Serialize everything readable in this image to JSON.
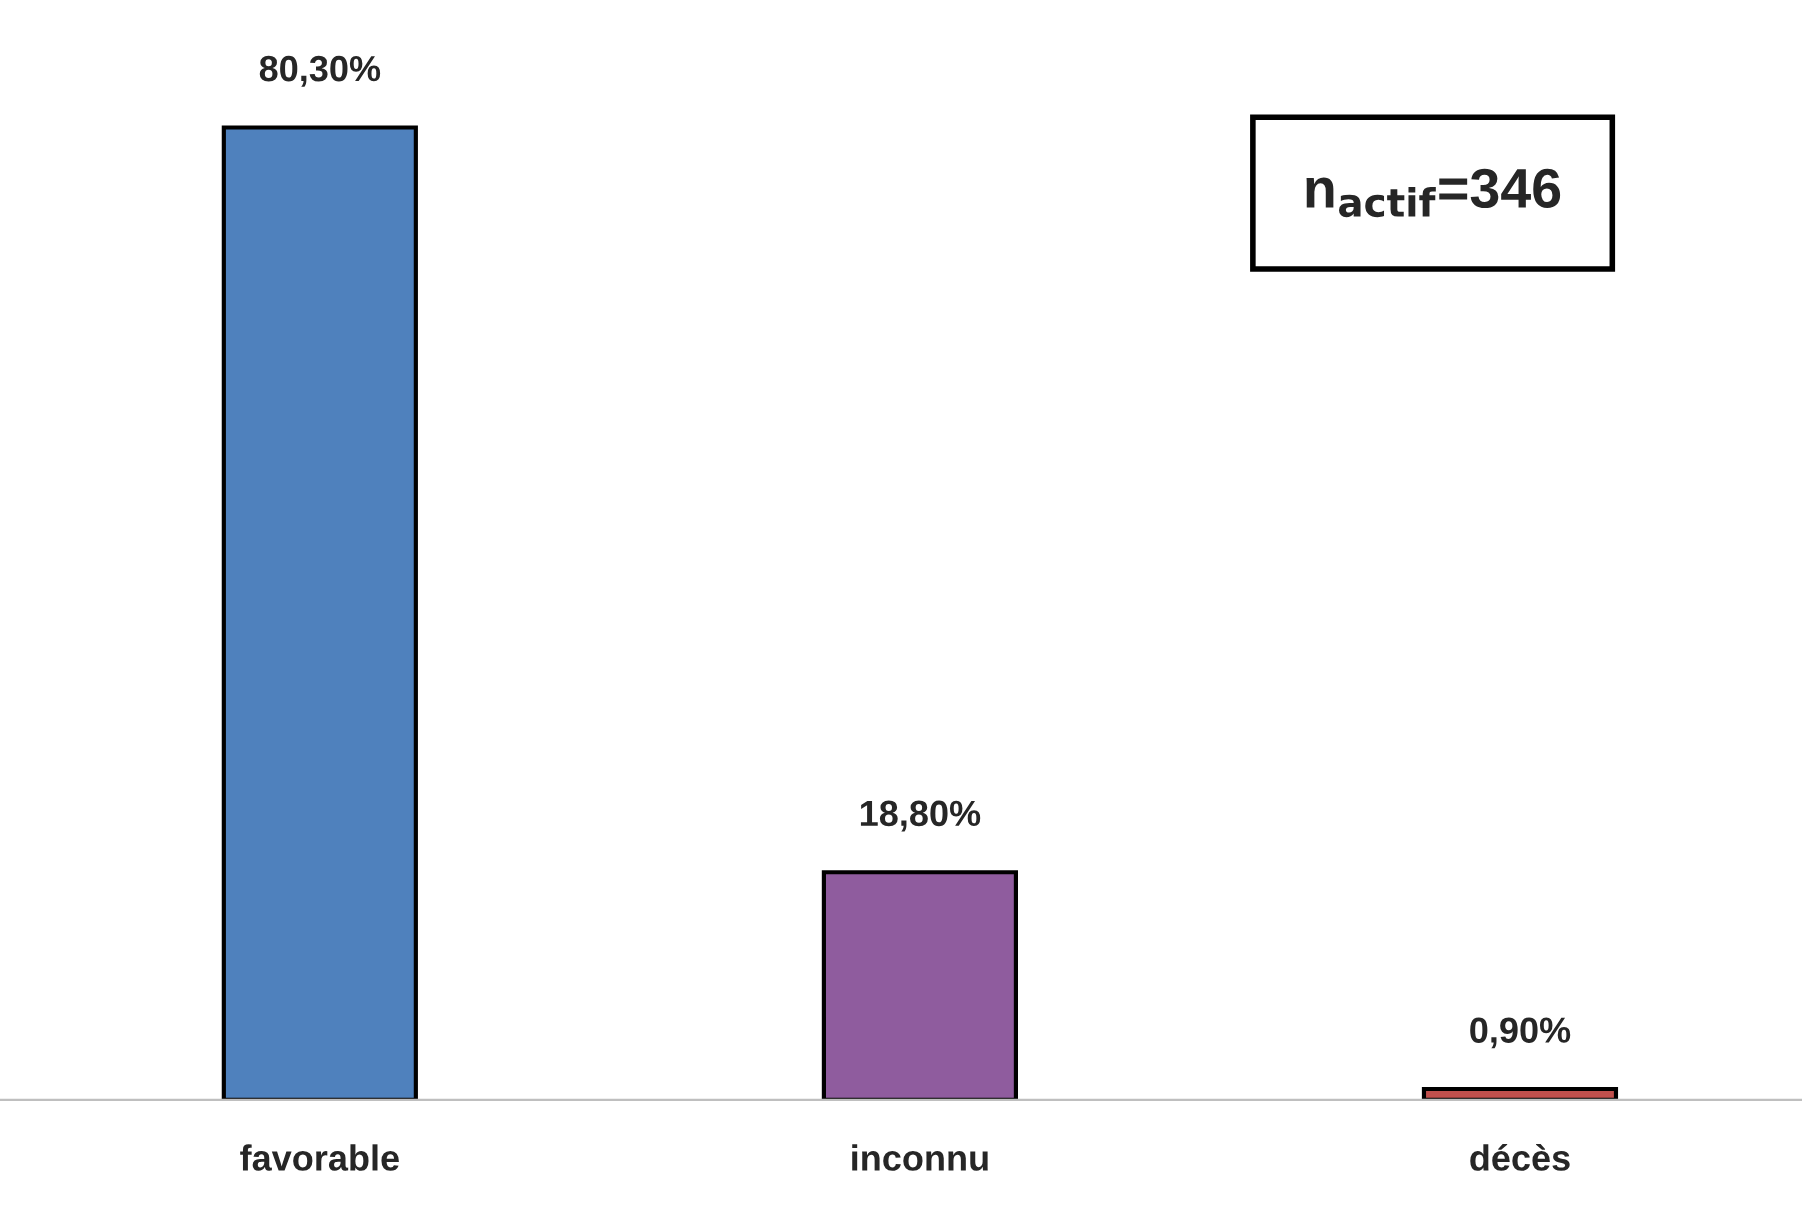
{
  "chart_data": {
    "type": "bar",
    "categories": [
      "favorable",
      "inconnu",
      "décès"
    ],
    "values": [
      80.3,
      18.8,
      0.9
    ],
    "colors": [
      "#4f81bd",
      "#8f5c9e",
      "#c0504d"
    ],
    "value_labels": [
      "80,30%",
      "18,80%",
      "0,90%"
    ],
    "tick_labels": "x",
    "grid": false,
    "legend": false,
    "annotations": [
      "n$_{actif}$=346"
    ]
  }
}
